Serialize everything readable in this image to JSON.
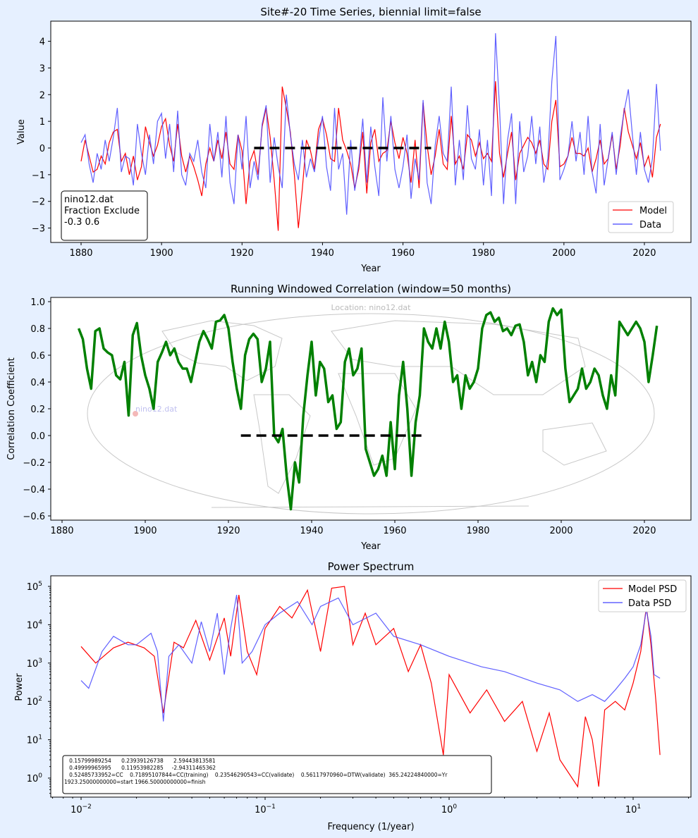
{
  "figure": {
    "background": "#e6f0ff"
  },
  "chart_data": [
    {
      "type": "line",
      "title": "Site#-20 Time Series, biennial limit=false",
      "xlabel": "Year",
      "ylabel": "Value",
      "xlim": [
        1873,
        2031
      ],
      "ylim": [
        -3.55,
        4.8
      ],
      "xticks": [
        1880,
        1900,
        1920,
        1940,
        1960,
        1980,
        2000,
        2020
      ],
      "yticks": [
        -3,
        -2,
        -1,
        0,
        1,
        2,
        3,
        4
      ],
      "legend": {
        "placement": "lower-right",
        "entries": [
          "Model",
          "Data"
        ]
      },
      "annotation": [
        "nino12.dat",
        "Fraction Exclude",
        "-0.3 0.6"
      ],
      "reference_line": {
        "x": [
          1923,
          1967
        ],
        "y": 0,
        "style": "dashed",
        "color": "#000000"
      },
      "x_start": 1880,
      "series": [
        {
          "name": "Model",
          "color": "#ff0000",
          "values": [
            -0.5,
            0.3,
            -0.3,
            -0.9,
            -0.8,
            -0.3,
            -0.6,
            0.2,
            0.6,
            0.7,
            -0.5,
            -0.2,
            -1.0,
            -0.3,
            -1.2,
            -0.7,
            0.8,
            0.2,
            -0.3,
            0.1,
            0.8,
            1.1,
            0.1,
            -0.5,
            0.9,
            -0.3,
            -0.9,
            -0.3,
            -0.7,
            -1.2,
            -1.8,
            -0.6,
            0.0,
            -0.5,
            0.3,
            -0.4,
            0.6,
            -0.6,
            -0.8,
            0.5,
            -0.1,
            -2.1,
            -0.5,
            -0.1,
            -1.0,
            0.8,
            1.5,
            0.4,
            -1.2,
            -3.1,
            2.3,
            1.5,
            0.6,
            -1.0,
            -3.0,
            -1.5,
            0.3,
            -0.1,
            -0.8,
            0.7,
            1.1,
            0.5,
            -0.4,
            -0.5,
            1.5,
            0.3,
            -0.1,
            -0.6,
            -1.5,
            -0.8,
            0.6,
            -1.7,
            0.2,
            0.7,
            -0.5,
            -0.2,
            -0.1,
            1.0,
            0.2,
            -0.4,
            0.4,
            -0.2,
            -1.3,
            0.3,
            -1.5,
            1.7,
            0.1,
            -1.0,
            -0.3,
            0.7,
            -0.6,
            -0.8,
            1.2,
            -0.6,
            -0.3,
            -0.8,
            0.5,
            0.3,
            -0.3,
            0.2,
            -0.4,
            -0.2,
            -0.5,
            2.5,
            -0.2,
            -1.1,
            -0.2,
            0.6,
            -1.2,
            -0.2,
            0.1,
            0.4,
            0.2,
            -0.2,
            0.3,
            -0.6,
            -0.8,
            1.0,
            1.8,
            -0.7,
            -0.6,
            -0.3,
            0.4,
            -0.2,
            -0.2,
            -0.3,
            0.0,
            -0.9,
            -0.4,
            0.3,
            -0.6,
            -0.4,
            0.5,
            -0.8,
            0.1,
            1.5,
            0.6,
            0.1,
            -0.4,
            0.2,
            -0.7,
            -0.3,
            -1.1,
            0.4,
            0.9
          ]
        },
        {
          "name": "Data",
          "color": "#4444ff",
          "values": [
            0.2,
            0.5,
            -0.6,
            -1.3,
            -0.2,
            -0.8,
            0.3,
            -0.5,
            0.4,
            1.5,
            -0.9,
            -0.3,
            -0.4,
            -1.4,
            0.9,
            -0.2,
            -1.0,
            0.5,
            -0.6,
            1.0,
            1.3,
            -0.4,
            0.9,
            -0.9,
            1.4,
            -1.0,
            -1.4,
            -0.2,
            -0.5,
            0.3,
            -0.9,
            -1.5,
            0.9,
            -0.5,
            0.6,
            -1.1,
            1.2,
            -1.3,
            -2.1,
            0.5,
            -0.8,
            1.2,
            -1.5,
            -0.5,
            -1.2,
            0.9,
            1.6,
            -1.3,
            0.4,
            -0.7,
            -1.5,
            2.0,
            0.5,
            -0.6,
            -1.2,
            0.3,
            -1.1,
            -0.4,
            -0.9,
            0.3,
            1.2,
            -0.7,
            -1.6,
            1.5,
            -0.8,
            -0.2,
            -2.5,
            0.3,
            -1.6,
            -0.6,
            1.1,
            -1.3,
            0.8,
            -0.7,
            -1.8,
            1.9,
            -0.5,
            1.2,
            -0.8,
            -1.5,
            -0.7,
            0.5,
            -1.9,
            -0.4,
            -1.2,
            1.8,
            -1.3,
            -2.1,
            0.1,
            1.2,
            -0.2,
            -0.5,
            2.3,
            -1.4,
            0.3,
            -1.2,
            1.6,
            -0.4,
            -0.8,
            0.7,
            -1.4,
            0.3,
            -1.8,
            4.3,
            1.5,
            -2.1,
            0.3,
            1.3,
            -2.1,
            1.0,
            -0.9,
            -0.3,
            1.2,
            -0.6,
            0.8,
            -1.3,
            -0.4,
            2.5,
            4.2,
            -1.2,
            -0.8,
            -0.3,
            1.0,
            -0.5,
            0.6,
            -1.0,
            1.2,
            -0.9,
            -1.7,
            0.9,
            -1.4,
            -0.4,
            0.6,
            -1.0,
            0.4,
            1.4,
            2.2,
            0.5,
            -1.0,
            0.6,
            -0.8,
            -1.3,
            -0.4,
            2.4,
            -0.1
          ]
        }
      ]
    },
    {
      "type": "line",
      "title": "Running Windowed Correlation (window=50 months)",
      "xlabel": "Year",
      "ylabel": "Correlation Coefficient",
      "xlim": [
        1877,
        2031
      ],
      "ylim": [
        -0.64,
        1.03
      ],
      "xticks": [
        1880,
        1900,
        1920,
        1940,
        1960,
        1980,
        2000,
        2020
      ],
      "yticks": [
        -0.6,
        -0.4,
        -0.2,
        0.0,
        0.2,
        0.4,
        0.6,
        0.8,
        1.0
      ],
      "background_map": {
        "title": "Location: nino12.dat",
        "marker_label": "nino12.dat",
        "marker_color": "#f4b8b8"
      },
      "reference_line": {
        "x": [
          1923,
          1967
        ],
        "y": 0,
        "style": "dashed",
        "color": "#000000"
      },
      "x_start": 1884,
      "series": [
        {
          "color": "#008000",
          "values": [
            0.8,
            0.72,
            0.5,
            0.35,
            0.78,
            0.8,
            0.65,
            0.62,
            0.6,
            0.45,
            0.42,
            0.55,
            0.15,
            0.75,
            0.84,
            0.6,
            0.45,
            0.35,
            0.2,
            0.55,
            0.62,
            0.7,
            0.6,
            0.65,
            0.55,
            0.5,
            0.5,
            0.4,
            0.55,
            0.7,
            0.78,
            0.72,
            0.65,
            0.85,
            0.86,
            0.9,
            0.8,
            0.55,
            0.35,
            0.2,
            0.6,
            0.72,
            0.76,
            0.72,
            0.4,
            0.5,
            0.7,
            0.0,
            -0.05,
            0.05,
            -0.3,
            -0.55,
            -0.2,
            -0.35,
            0.15,
            0.45,
            0.7,
            0.3,
            0.55,
            0.5,
            0.25,
            0.3,
            0.05,
            0.1,
            0.55,
            0.65,
            0.45,
            0.5,
            0.65,
            -0.1,
            -0.2,
            -0.3,
            -0.25,
            -0.15,
            -0.3,
            0.1,
            -0.25,
            0.3,
            0.55,
            0.2,
            -0.3,
            0.1,
            0.3,
            0.8,
            0.7,
            0.65,
            0.8,
            0.65,
            0.85,
            0.7,
            0.4,
            0.45,
            0.2,
            0.45,
            0.35,
            0.4,
            0.5,
            0.8,
            0.9,
            0.92,
            0.85,
            0.88,
            0.78,
            0.8,
            0.75,
            0.82,
            0.83,
            0.7,
            0.45,
            0.55,
            0.4,
            0.6,
            0.55,
            0.85,
            0.95,
            0.9,
            0.94,
            0.5,
            0.25,
            0.3,
            0.35,
            0.5,
            0.35,
            0.4,
            0.5,
            0.45,
            0.3,
            0.2,
            0.45,
            0.3,
            0.85,
            0.8,
            0.75,
            0.8,
            0.85,
            0.8,
            0.7,
            0.4,
            0.6,
            0.82
          ]
        }
      ]
    },
    {
      "type": "line",
      "title": "Power Spectrum",
      "xlabel": "Frequency (1/year)",
      "ylabel": "Power",
      "xscale": "log",
      "yscale": "log",
      "xlim": [
        0.007,
        20
      ],
      "ylim": [
        0.3,
        200000
      ],
      "xticks": [
        "10^-2",
        "10^-1",
        "10^0",
        "10^1"
      ],
      "yticks": [
        "10^0",
        "10^1",
        "10^2",
        "10^3",
        "10^4",
        "10^5"
      ],
      "legend": {
        "placement": "top-right",
        "entries": [
          "Model PSD",
          "Data PSD"
        ]
      },
      "annotation": [
        "   0.15799989254      0.23939126738      2.59443813581",
        "   0.49999965995      0.11953982285     -2.94311465362",
        "   0.52485733952=CC    0.71895107844=CC(training)    0.23546290543=CC(validate)    0.56117970960=DTW(validate)  365.24224840000=Yr",
        "1923.25000000000=start 1966.50000000000=finish"
      ],
      "series": [
        {
          "name": "Model PSD",
          "color": "#ff0000",
          "x": [
            0.01,
            0.012,
            0.015,
            0.018,
            0.022,
            0.025,
            0.028,
            0.032,
            0.036,
            0.042,
            0.05,
            0.06,
            0.065,
            0.072,
            0.08,
            0.09,
            0.1,
            0.12,
            0.14,
            0.17,
            0.2,
            0.23,
            0.27,
            0.3,
            0.35,
            0.4,
            0.5,
            0.6,
            0.7,
            0.8,
            0.93,
            1.0,
            1.3,
            1.6,
            2,
            2.5,
            3,
            3.5,
            4,
            5,
            5.5,
            6,
            6.5,
            7,
            8,
            9,
            10,
            11,
            11.8,
            12.5,
            13.3,
            14
          ],
          "y": [
            2700,
            1000,
            2500,
            3500,
            2500,
            1500,
            50,
            3500,
            2500,
            13000,
            1200,
            15000,
            1500,
            60000,
            2000,
            500,
            8000,
            30000,
            15000,
            80000,
            2000,
            90000,
            100000,
            3000,
            20000,
            3000,
            8000,
            600,
            3000,
            300,
            4,
            500,
            50,
            200,
            30,
            100,
            5,
            50,
            3,
            0.6,
            40,
            10,
            0.6,
            60,
            100,
            60,
            300,
            2000,
            30000,
            3000,
            100,
            4
          ]
        },
        {
          "name": "Data PSD",
          "color": "#4444ff",
          "x": [
            0.01,
            0.011,
            0.013,
            0.015,
            0.018,
            0.02,
            0.024,
            0.026,
            0.028,
            0.03,
            0.034,
            0.04,
            0.045,
            0.05,
            0.055,
            0.06,
            0.065,
            0.07,
            0.075,
            0.085,
            0.1,
            0.12,
            0.15,
            0.18,
            0.2,
            0.25,
            0.3,
            0.4,
            0.5,
            0.7,
            1.0,
            1.5,
            2,
            3,
            4,
            5,
            6,
            7,
            8,
            9,
            10,
            11,
            11.8,
            12.5,
            13,
            14
          ],
          "y": [
            350,
            220,
            2000,
            5000,
            3000,
            3000,
            6000,
            2000,
            30,
            1500,
            3000,
            1000,
            12000,
            2000,
            20000,
            500,
            8000,
            60000,
            1000,
            2000,
            10000,
            20000,
            40000,
            10000,
            30000,
            50000,
            10000,
            20000,
            5000,
            3000,
            1500,
            800,
            600,
            300,
            200,
            100,
            150,
            100,
            200,
            400,
            800,
            3000,
            25000,
            5000,
            500,
            400
          ]
        }
      ]
    }
  ]
}
